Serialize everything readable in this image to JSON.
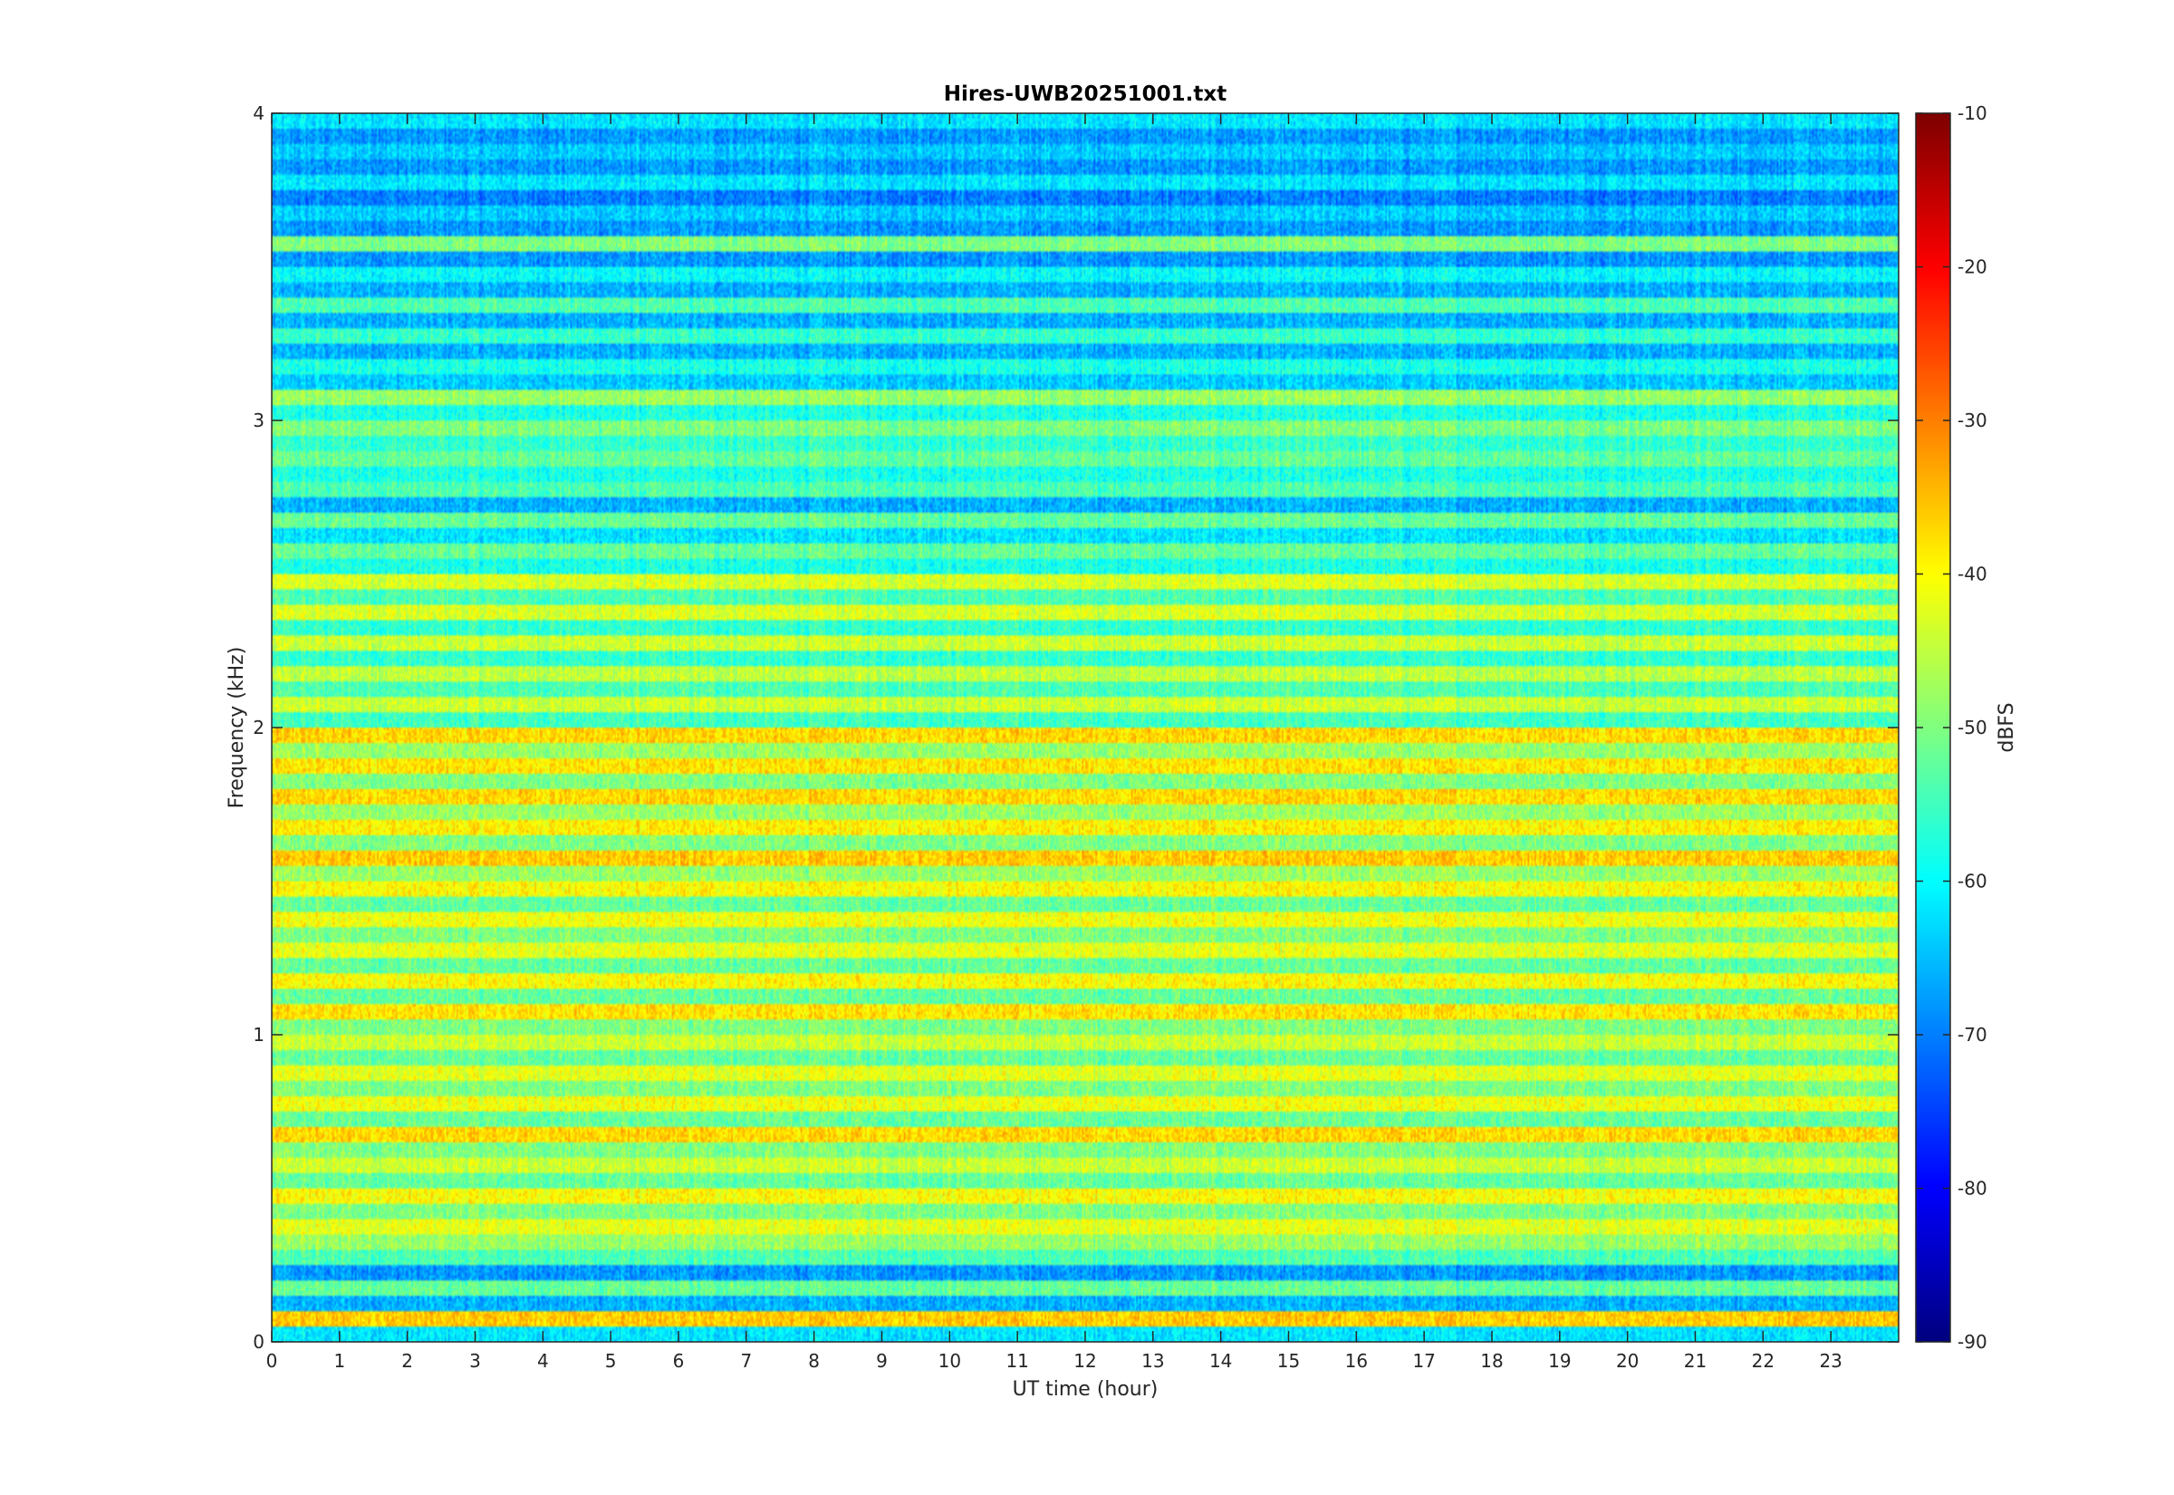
{
  "chart_data": {
    "type": "heatmap",
    "title": "Hires-UWB20251001.txt",
    "xlabel": "UT time (hour)",
    "ylabel": "Frequency (kHz)",
    "xlim": [
      0,
      24
    ],
    "ylim": [
      0,
      4
    ],
    "x_ticks": [
      "0",
      "1",
      "2",
      "3",
      "4",
      "5",
      "6",
      "7",
      "8",
      "9",
      "10",
      "11",
      "12",
      "13",
      "14",
      "15",
      "16",
      "17",
      "18",
      "19",
      "20",
      "21",
      "22",
      "23"
    ],
    "y_ticks": [
      "0",
      "1",
      "2",
      "3",
      "4"
    ],
    "colorbar": {
      "label": "dBFS",
      "range": [
        -90,
        -10
      ],
      "ticks": [
        "-10",
        "-20",
        "-30",
        "-40",
        "-50",
        "-60",
        "-70",
        "-80",
        "-90"
      ],
      "colormap": "jet"
    },
    "band_levels_dBFS": {
      "frequency_kHz": [
        0.0,
        0.05,
        0.1,
        0.15,
        0.2,
        0.25,
        0.3,
        0.35,
        0.4,
        0.45,
        0.5,
        0.55,
        0.6,
        0.65,
        0.7,
        0.75,
        0.8,
        0.85,
        0.9,
        0.95,
        1.0,
        1.05,
        1.1,
        1.15,
        1.2,
        1.25,
        1.3,
        1.35,
        1.4,
        1.45,
        1.5,
        1.55,
        1.6,
        1.65,
        1.7,
        1.75,
        1.8,
        1.85,
        1.9,
        1.95,
        2.0,
        2.05,
        2.1,
        2.15,
        2.2,
        2.25,
        2.3,
        2.35,
        2.4,
        2.45,
        2.5,
        2.55,
        2.6,
        2.65,
        2.7,
        2.75,
        2.8,
        2.85,
        2.9,
        2.95,
        3.0,
        3.05,
        3.1,
        3.15,
        3.2,
        3.25,
        3.3,
        3.35,
        3.4,
        3.45,
        3.5,
        3.55,
        3.6,
        3.65,
        3.7,
        3.75,
        3.8,
        3.85,
        3.9,
        3.95
      ],
      "level": [
        -62,
        -36,
        -66,
        -52,
        -68,
        -54,
        -48,
        -42,
        -50,
        -40,
        -52,
        -44,
        -50,
        -37,
        -52,
        -41,
        -50,
        -42,
        -52,
        -44,
        -50,
        -38,
        -52,
        -40,
        -52,
        -42,
        -50,
        -41,
        -52,
        -40,
        -48,
        -36,
        -50,
        -39,
        -48,
        -37,
        -50,
        -38,
        -48,
        -37,
        -55,
        -44,
        -54,
        -45,
        -56,
        -44,
        -56,
        -43,
        -54,
        -43,
        -58,
        -52,
        -62,
        -52,
        -66,
        -54,
        -58,
        -52,
        -56,
        -50,
        -58,
        -48,
        -64,
        -58,
        -66,
        -56,
        -66,
        -54,
        -66,
        -60,
        -68,
        -50,
        -68,
        -64,
        -70,
        -62,
        -68,
        -64,
        -68,
        -62
      ]
    }
  }
}
